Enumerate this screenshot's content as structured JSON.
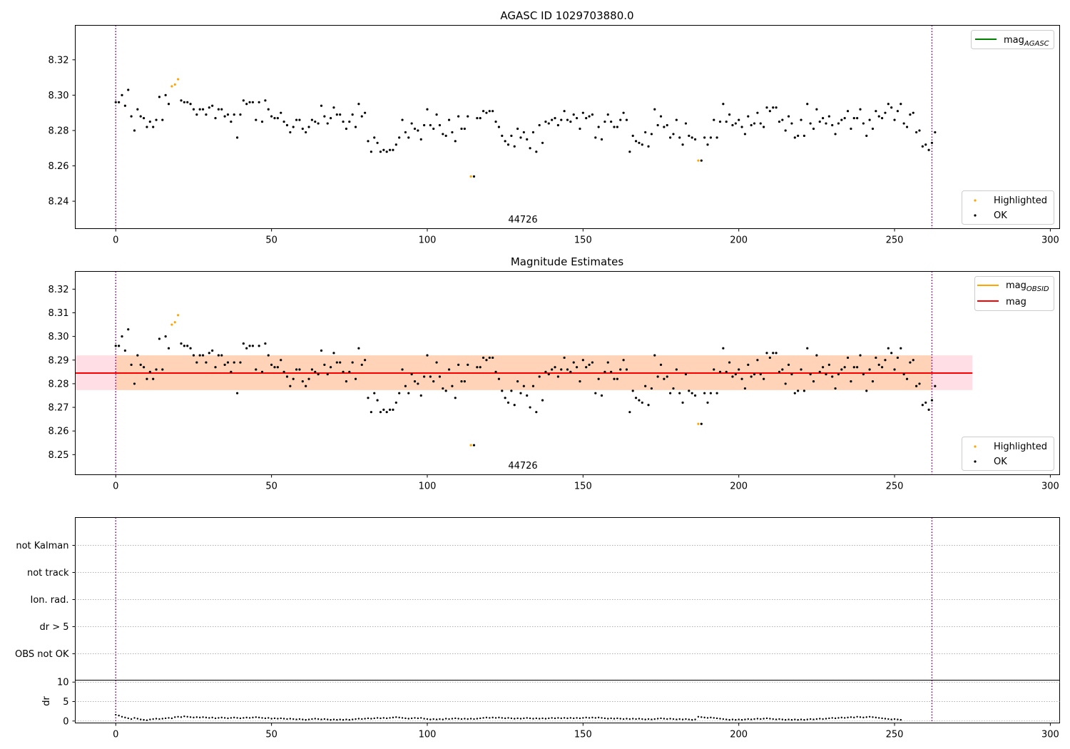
{
  "chart_data": [
    {
      "type": "scatter",
      "title": "AGASC ID 1029703880.0",
      "xlim": [
        -13,
        303
      ],
      "ylim": [
        8.2245,
        8.3395
      ],
      "x_ticks": [
        0,
        50,
        100,
        150,
        200,
        250,
        300
      ],
      "y_ticks": [
        8.24,
        8.26,
        8.28,
        8.3,
        8.32
      ],
      "y_tick_labels": [
        "8.24",
        "8.26",
        "8.28",
        "8.30",
        "8.32"
      ],
      "vlines": [
        0,
        262
      ],
      "annotation": "44726",
      "line_legend": [
        {
          "name": "mag",
          "sub": "AGASC",
          "color": "#008000"
        }
      ],
      "point_legend": [
        {
          "name": "Highlighted",
          "color": "#ffa500"
        },
        {
          "name": "OK",
          "color": "#000000"
        }
      ],
      "series": [
        {
          "name": "OK",
          "color": "#000000",
          "y": [
            8.296,
            8.296,
            8.3,
            8.294,
            8.303,
            8.288,
            8.28,
            8.292,
            8.288,
            8.287,
            8.282,
            8.285,
            8.282,
            8.286,
            8.299,
            8.286,
            8.3,
            8.295,
            8.305,
            8.306,
            8.309,
            8.297,
            8.296,
            8.296,
            8.295,
            8.292,
            8.289,
            8.292,
            8.292,
            8.289,
            8.293,
            8.294,
            8.287,
            8.292,
            8.292,
            8.288,
            8.289,
            8.285,
            8.289,
            8.276,
            8.289,
            8.297,
            8.295,
            8.296,
            8.296,
            8.286,
            8.296,
            8.285,
            8.297,
            8.292,
            8.288,
            8.287,
            8.287,
            8.29,
            8.285,
            8.283,
            8.279,
            8.282,
            8.286,
            8.286,
            8.281,
            8.279,
            8.282,
            8.286,
            8.285,
            8.284,
            8.294,
            8.288,
            8.284,
            8.287,
            8.293,
            8.289,
            8.289,
            8.285,
            8.281,
            8.285,
            8.289,
            8.282,
            8.295,
            8.288,
            8.29,
            8.274,
            8.268,
            8.276,
            8.273,
            8.268,
            8.269,
            8.268,
            8.269,
            8.269,
            8.272,
            8.276,
            8.286,
            8.279,
            8.276,
            8.284,
            8.281,
            8.28,
            8.275,
            8.283,
            8.292,
            8.283,
            8.281,
            8.289,
            8.283,
            8.278,
            8.277,
            8.286,
            8.279,
            8.274,
            8.288,
            8.281,
            8.281,
            8.288,
            8.283,
            8.254,
            8.287,
            8.287,
            8.291,
            8.29,
            8.291,
            8.291,
            8.285,
            8.282,
            8.277,
            8.274,
            8.272,
            8.277,
            8.271,
            8.281,
            8.276,
            8.279,
            8.275,
            8.27,
            8.279,
            8.268,
            8.283,
            8.273,
            8.285,
            8.284,
            8.286,
            8.287,
            8.283,
            8.286,
            8.291,
            8.286,
            8.285,
            8.289,
            8.287,
            8.281,
            8.29,
            8.287,
            8.288,
            8.289,
            8.276,
            8.282,
            8.275,
            8.285,
            8.289,
            8.285,
            8.282,
            8.282,
            8.286,
            8.29,
            8.286,
            8.268,
            8.277,
            8.274,
            8.273,
            8.272,
            8.279,
            8.271,
            8.278,
            8.292,
            8.283,
            8.288,
            8.282,
            8.283,
            8.276,
            8.278,
            8.286,
            8.276,
            8.272,
            8.284,
            8.277,
            8.276,
            8.275,
            8.269,
            8.263,
            8.276,
            8.272,
            8.276,
            8.286,
            8.276,
            8.285,
            8.295,
            8.285,
            8.289,
            8.283,
            8.284,
            8.286,
            8.282,
            8.278,
            8.288,
            8.283,
            8.284,
            8.29,
            8.284,
            8.282,
            8.293,
            8.291,
            8.293,
            8.293,
            8.285,
            8.286,
            8.28,
            8.288,
            8.284,
            8.276,
            8.277,
            8.286,
            8.277,
            8.295,
            8.284,
            8.281,
            8.292,
            8.285,
            8.287,
            8.284,
            8.288,
            8.283,
            8.278,
            8.284,
            8.286,
            8.287,
            8.291,
            8.281,
            8.287,
            8.287,
            8.292,
            8.284,
            8.277,
            8.286,
            8.281,
            8.291,
            8.288,
            8.287,
            8.29,
            8.295,
            8.293,
            8.286,
            8.291,
            8.295,
            8.284,
            8.282,
            8.289,
            8.29,
            8.279,
            8.28,
            8.271,
            8.272,
            8.269,
            8.273,
            8.279
          ]
        },
        {
          "name": "Highlighted",
          "color": "#ffa500",
          "x": [
            18,
            19,
            20,
            114,
            187
          ],
          "y": [
            8.305,
            8.306,
            8.309,
            8.254,
            8.263
          ]
        }
      ]
    },
    {
      "type": "scatter",
      "title": "Magnitude Estimates",
      "xlim": [
        -13,
        303
      ],
      "ylim": [
        8.2415,
        8.3275
      ],
      "x_ticks": [
        0,
        50,
        100,
        150,
        200,
        250,
        300
      ],
      "y_ticks": [
        8.25,
        8.26,
        8.27,
        8.28,
        8.29,
        8.3,
        8.31,
        8.32
      ],
      "y_tick_labels": [
        "8.25",
        "8.26",
        "8.27",
        "8.28",
        "8.29",
        "8.30",
        "8.31",
        "8.32"
      ],
      "vlines": [
        0,
        262
      ],
      "annotation": "44726",
      "mag": 8.2845,
      "mag_band": [
        8.2773,
        8.292
      ],
      "mag_obsid": 8.2845,
      "mag_obsid_band": [
        8.2773,
        8.292
      ],
      "line_x_range": [
        -13,
        275
      ],
      "line_legend": [
        {
          "name": "mag",
          "sub": "OBSID",
          "color": "#ffa500"
        },
        {
          "name": "mag",
          "sub": "",
          "color": "#ff0000"
        }
      ],
      "point_legend": [
        {
          "name": "Highlighted",
          "color": "#ffa500"
        },
        {
          "name": "OK",
          "color": "#000000"
        }
      ],
      "series": [
        {
          "name": "OK",
          "color": "#000000",
          "y_ref": "same as AGASC panel"
        },
        {
          "name": "Highlighted",
          "color": "#ffa500",
          "x": [
            18,
            19,
            20,
            114,
            187
          ],
          "y": [
            8.305,
            8.306,
            8.309,
            8.254,
            8.263
          ]
        }
      ]
    },
    {
      "type": "scatter",
      "xlim": [
        -13,
        303
      ],
      "categories": [
        "not Kalman",
        "not track",
        "Ion. rad.",
        "dr > 5",
        "OBS not OK"
      ],
      "vlines": [
        0,
        262
      ],
      "flags": []
    },
    {
      "type": "scatter",
      "xlim": [
        -13,
        303
      ],
      "ylim": [
        -0.5,
        10.5
      ],
      "ylabel": "dr",
      "y_ticks": [
        0,
        5,
        10
      ],
      "y_tick_labels": [
        "0",
        "5",
        "10"
      ],
      "x_ticks": [
        0,
        50,
        100,
        150,
        200,
        250,
        300
      ],
      "vlines": [
        0,
        262
      ],
      "series": [
        {
          "name": "dr",
          "color": "#000000",
          "y": [
            1.6,
            1.4,
            1.1,
            0.9,
            0.7,
            0.5,
            0.8,
            0.6,
            0.4,
            0.3,
            0.2,
            0.4,
            0.5,
            0.6,
            0.5,
            0.6,
            0.7,
            0.8,
            0.7,
            1,
            1.1,
            1,
            1.2,
            1.1,
            1,
            0.9,
            1,
            0.9,
            1,
            0.9,
            0.8,
            0.9,
            0.7,
            0.8,
            0.9,
            0.8,
            0.7,
            0.8,
            0.9,
            0.8,
            0.7,
            0.8,
            0.9,
            0.8,
            0.9,
            1,
            0.9,
            0.8,
            0.7,
            0.8,
            0.6,
            0.7,
            0.6,
            0.7,
            0.6,
            0.5,
            0.6,
            0.5,
            0.4,
            0.5,
            0.4,
            0.3,
            0.4,
            0.5,
            0.6,
            0.5,
            0.4,
            0.5,
            0.4,
            0.3,
            0.4,
            0.3,
            0.4,
            0.3,
            0.4,
            0.3,
            0.4,
            0.5,
            0.6,
            0.5,
            0.6,
            0.7,
            0.6,
            0.7,
            0.8,
            0.7,
            0.8,
            0.7,
            0.8,
            0.9,
            1,
            0.9,
            0.8,
            0.7,
            0.6,
            0.7,
            0.8,
            0.7,
            0.8,
            0.6,
            0.5,
            0.4,
            0.5,
            0.4,
            0.5,
            0.4,
            0.6,
            0.5,
            0.6,
            0.7,
            0.6,
            0.5,
            0.6,
            0.5,
            0.6,
            0.5,
            0.6,
            0.7,
            0.8,
            0.9,
            0.8,
            0.9,
            0.8,
            0.9,
            0.8,
            0.7,
            0.8,
            0.7,
            0.6,
            0.7,
            0.6,
            0.7,
            0.8,
            0.7,
            0.6,
            0.7,
            0.6,
            0.7,
            0.6,
            0.7,
            0.8,
            0.7,
            0.8,
            0.7,
            0.8,
            0.7,
            0.8,
            0.7,
            0.8,
            0.7,
            0.8,
            0.9,
            0.8,
            0.9,
            0.8,
            0.9,
            0.8,
            0.7,
            0.6,
            0.7,
            0.6,
            0.7,
            0.6,
            0.5,
            0.6,
            0.5,
            0.6,
            0.5,
            0.6,
            0.5,
            0.4,
            0.5,
            0.4,
            0.5,
            0.6,
            0.7,
            0.6,
            0.5,
            0.6,
            0.5,
            0.4,
            0.5,
            0.4,
            0.5,
            0.4,
            0.3,
            0.4,
            1.1,
            1,
            0.9,
            0.8,
            0.9,
            0.8,
            0.7,
            0.6,
            0.5,
            0.4,
            0.3,
            0.4,
            0.3,
            0.4,
            0.3,
            0.4,
            0.5,
            0.4,
            0.5,
            0.6,
            0.5,
            0.6,
            0.7,
            0.6,
            0.5,
            0.4,
            0.5,
            0.4,
            0.3,
            0.4,
            0.3,
            0.4,
            0.3,
            0.4,
            0.3,
            0.4,
            0.5,
            0.4,
            0.5,
            0.6,
            0.5,
            0.6,
            0.7,
            0.8,
            0.7,
            0.8,
            0.9,
            0.8,
            0.9,
            1,
            0.9,
            1.1,
            1,
            0.9,
            1,
            1.1,
            1,
            0.9,
            0.8,
            0.7,
            0.6,
            0.5,
            0.4,
            0.5,
            0.4,
            0.3
          ]
        }
      ]
    }
  ]
}
